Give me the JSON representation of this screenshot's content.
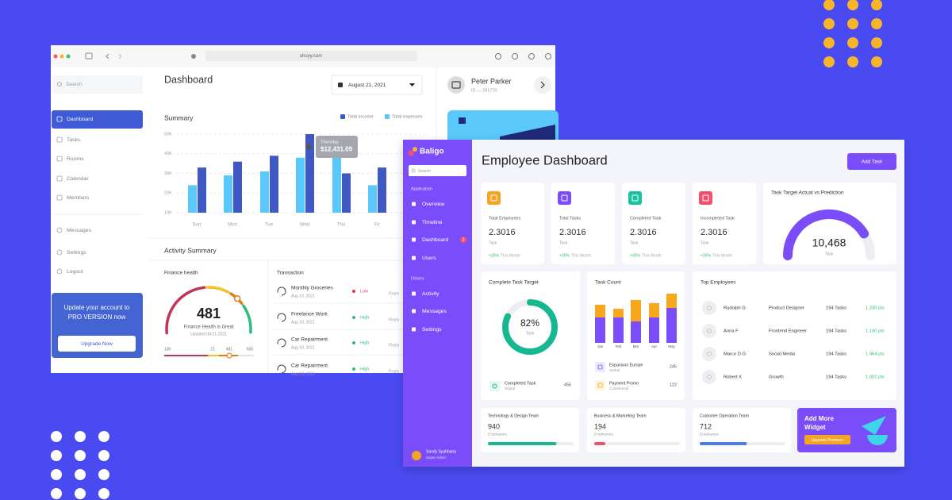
{
  "browser": {
    "url": "uhuyy.com"
  },
  "back_app": {
    "search": "Search",
    "nav": [
      "Dashboard",
      "Tasks",
      "Rooms",
      "Calendar",
      "Members"
    ],
    "nav2": [
      "Messages",
      "Settings",
      "Logout"
    ],
    "upgrade": {
      "text": [
        "Update your account to",
        "PRO VERSION now"
      ],
      "button": "Upgrade Now"
    },
    "title": "Dashboard",
    "date": "August 21, 2021",
    "profile": {
      "name": "Peter Parker",
      "id": "ID — 281770"
    },
    "summary": {
      "type": "bar",
      "title": "Summary",
      "categories": [
        "Sun",
        "Mon",
        "Tue",
        "Wed",
        "Thu",
        "Fri"
      ],
      "series": [
        {
          "name": "Total income",
          "color": "#3f58c4",
          "values": [
            33,
            36,
            39,
            50,
            30,
            33
          ]
        },
        {
          "name": "Total expenses",
          "color": "#5ac8fa",
          "values": [
            24,
            29,
            31,
            38,
            41,
            24
          ]
        }
      ],
      "ylim": [
        10,
        50
      ],
      "yticks": [
        {
          "value": 50,
          "label": "50K"
        },
        {
          "value": 40,
          "label": "40K"
        },
        {
          "value": 30,
          "label": "30K"
        },
        {
          "value": 20,
          "label": "20K"
        },
        {
          "value": 10,
          "label": "10K"
        }
      ],
      "tooltip": {
        "title": "Thursday",
        "value": "$12,431.09"
      }
    },
    "activity": {
      "title": "Activity Summary",
      "finance": {
        "title": "Finance health",
        "value": 481,
        "status": "Finance Health is Great",
        "updated": "Updated 08-21-2021",
        "scale": [
          100,
          21,
          481,
          600
        ]
      },
      "transactions": {
        "title": "Transaction",
        "rows": [
          {
            "name": "Monthly Groceries",
            "date": "Aug 10, 2021",
            "priority": "Low",
            "source": "From"
          },
          {
            "name": "Freelance Work",
            "date": "Aug 10, 2021",
            "priority": "High",
            "source": "From"
          },
          {
            "name": "Car Repairment",
            "date": "Aug 10, 2021",
            "priority": "High",
            "source": "From"
          },
          {
            "name": "Car Repairment",
            "date": "Aug 10, 2021",
            "priority": "High",
            "source": "From"
          }
        ]
      }
    }
  },
  "front_app": {
    "brand": "Baligo",
    "search": "Search",
    "sections": [
      {
        "title": "Application",
        "items": [
          "Overview",
          "Timeline",
          "Dashboard",
          "Users"
        ]
      },
      {
        "title": "Others",
        "items": [
          "Activity",
          "Messages",
          "Settings"
        ]
      }
    ],
    "badge": 2,
    "user": {
      "name": "Sandy Syahbana",
      "role": "Super Admin"
    },
    "title": "Employee Dashboard",
    "button": "Add Task",
    "stats": [
      {
        "label": "Total Employees",
        "value": 2.3016,
        "unit": "Task",
        "change": "+35%",
        "period": "This Month",
        "color": "#f5a524"
      },
      {
        "label": "Total Tasks",
        "value": 2.3016,
        "unit": "Task",
        "change": "+35%",
        "period": "This Month",
        "color": "#7b4cf9"
      },
      {
        "label": "Completed Task",
        "value": 2.3016,
        "unit": "Task",
        "change": "+35%",
        "period": "This Month",
        "color": "#17c3a2"
      },
      {
        "label": "Incompleted Task",
        "value": 2.3016,
        "unit": "Task",
        "change": "+35%",
        "period": "This Month",
        "color": "#f0506e"
      }
    ],
    "gauge": {
      "title": "Task Target Actual vs Prediction",
      "value": "10,468",
      "unit": "Task"
    },
    "complete": {
      "title": "Complete Task Target",
      "value": 82,
      "value_label": "82%",
      "unit": "Task",
      "item": {
        "name": "Completed Task",
        "sub": "Global",
        "value": 455
      }
    },
    "task_count": {
      "type": "bar",
      "title": "Task Count",
      "categories": [
        "Jan",
        "Feb",
        "Mar",
        "Apr",
        "May"
      ],
      "series": [
        {
          "color": "#7b4cf9",
          "values": [
            32,
            32,
            27,
            32,
            44
          ]
        },
        {
          "color": "#f8a81c",
          "values": [
            16,
            11,
            27,
            18,
            18
          ]
        }
      ],
      "items": [
        {
          "name": "Expansion Europe",
          "sub": "Global",
          "value": 245
        },
        {
          "name": "Payment Promo",
          "sub": "Commercial",
          "value": 122
        }
      ]
    },
    "top_employees": {
      "title": "Top Employees",
      "rows": [
        {
          "name": "Rudolph G",
          "role": "Product Designer",
          "tasks": "194 Tasks",
          "points": "1.230 pts"
        },
        {
          "name": "Anna F",
          "role": "Frontend Engineer",
          "tasks": "194 Tasks",
          "points": "1.140 pts"
        },
        {
          "name": "Marco D.G",
          "role": "Social Media",
          "tasks": "194 Tasks",
          "points": "1.064 pts"
        },
        {
          "name": "Robert X",
          "role": "Growth",
          "tasks": "194 Tasks",
          "points": "1.001 pts"
        }
      ]
    },
    "teams": [
      {
        "name": "Technology & Design Team",
        "count": 940,
        "unit": "Employees",
        "progress": 80,
        "color": "#17b890"
      },
      {
        "name": "Business & Marketing Team",
        "count": 194,
        "unit": "Employees",
        "progress": 13,
        "color": "#f0506e"
      },
      {
        "name": "Customer Operation Team",
        "count": 712,
        "unit": "Employees",
        "progress": 55,
        "color": "#4a7cf0"
      }
    ],
    "widget": {
      "title": [
        "Add More",
        "Widget"
      ],
      "button": "Upgrade Premium"
    }
  }
}
